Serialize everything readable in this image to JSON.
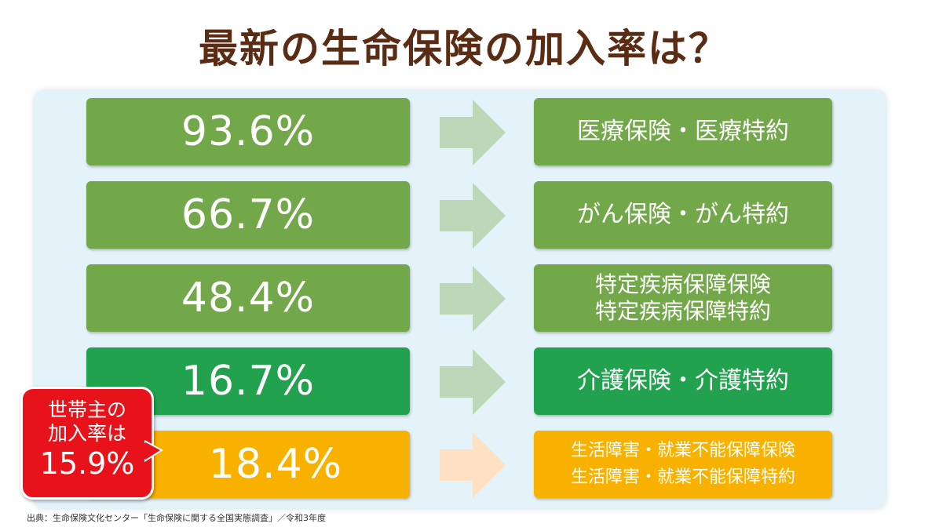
{
  "title": "最新の生命保険の加入率は？",
  "colors": {
    "title": "#5a2c14",
    "panel": "#e4f2f9",
    "green_light": "#72a74a",
    "green_dark": "#22a14f",
    "orange": "#f9b100",
    "arrow_green": "#bcd8b8",
    "arrow_orange": "#fde1c2",
    "badge_red": "#e8131a"
  },
  "chart_data": {
    "type": "table",
    "categories": [
      "医療保険・医療特約",
      "がん保険・がん特約",
      "特定疾病保障保険 特定疾病保障特約",
      "介護保険・介護特約",
      "生活障害・就業不能保障保険 生活障害・就業不能保障特約"
    ],
    "values": [
      93.6,
      66.7,
      48.4,
      16.7,
      18.4
    ],
    "unit": "%"
  },
  "rows": [
    {
      "value": "93.6%",
      "label_lines": [
        "医療保険・医療特約"
      ]
    },
    {
      "value": "66.7%",
      "label_lines": [
        "がん保険・がん特約"
      ]
    },
    {
      "value": "48.4%",
      "label_lines": [
        "特定疾病保障保険",
        "特定疾病保障特約"
      ]
    },
    {
      "value": "16.7%",
      "label_lines": [
        "介護保険・介護特約"
      ]
    },
    {
      "value": "18.4%",
      "label_lines": [
        "生活障害・就業不能保障保険",
        "生活障害・就業不能保障特約"
      ]
    }
  ],
  "badge": {
    "line1": "世帯主の",
    "line2": "加入率は",
    "line3": "15.9%"
  },
  "source": "出典：生命保険文化センター「生命保険に関する全国実態調査」／令和3年度"
}
